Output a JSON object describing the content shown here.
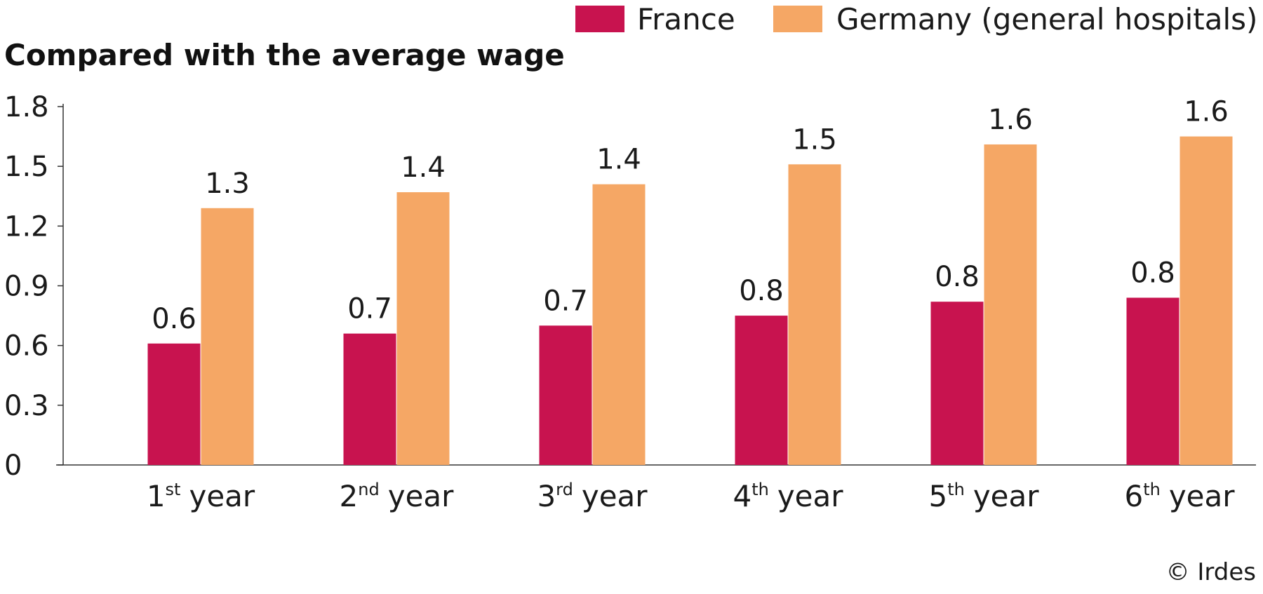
{
  "chart_data": {
    "type": "bar",
    "title": "Compared with the average wage",
    "categories": [
      {
        "num": "1",
        "sup": "st",
        "word": "year"
      },
      {
        "num": "2",
        "sup": "nd",
        "word": "year"
      },
      {
        "num": "3",
        "sup": "rd",
        "word": "year"
      },
      {
        "num": "4",
        "sup": "th",
        "word": "year"
      },
      {
        "num": "5",
        "sup": "th",
        "word": "year"
      },
      {
        "num": "6",
        "sup": "th",
        "word": "year"
      }
    ],
    "series": [
      {
        "name": "France",
        "color": "#c8134f",
        "values": [
          0.61,
          0.66,
          0.7,
          0.75,
          0.82,
          0.84
        ],
        "labels": [
          "0.6",
          "0.7",
          "0.7",
          "0.8",
          "0.8",
          "0.8"
        ]
      },
      {
        "name": "Germany (general hospitals)",
        "color": "#f5a765",
        "values": [
          1.29,
          1.37,
          1.41,
          1.51,
          1.61,
          1.65
        ],
        "labels": [
          "1.3",
          "1.4",
          "1.4",
          "1.5",
          "1.6",
          "1.6"
        ]
      }
    ],
    "yticks": [
      "0",
      "0.3",
      "0.6",
      "0.9",
      "1.2",
      "1.5",
      "1.8"
    ],
    "ylim": [
      0,
      1.8
    ],
    "grid": false,
    "legend_position": "top-right"
  },
  "credit": "© Irdes"
}
